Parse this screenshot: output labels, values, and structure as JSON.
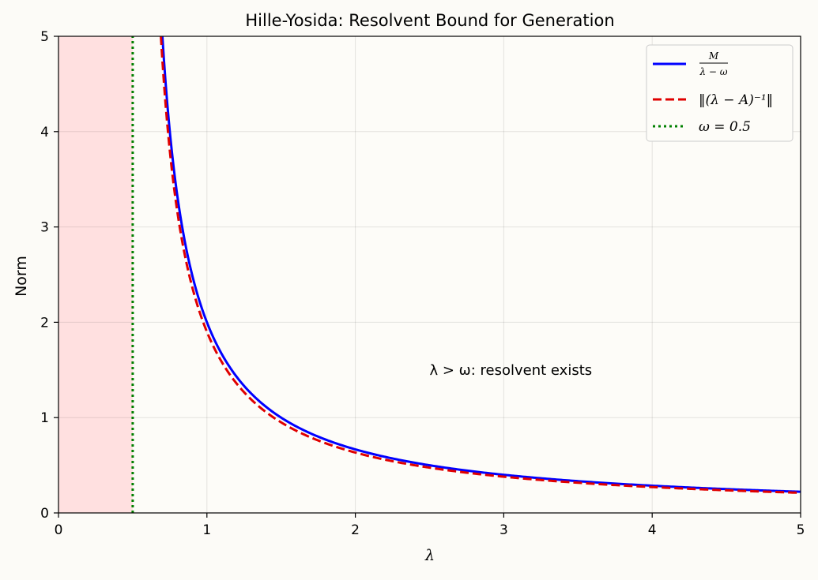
{
  "chart_data": {
    "type": "line",
    "title": "Hille-Yosida: Resolvent Bound for Generation",
    "xlabel": "λ",
    "ylabel": "Norm",
    "xlim": [
      0,
      5
    ],
    "ylim": [
      0,
      5
    ],
    "xticks": [
      0,
      1,
      2,
      3,
      4,
      5
    ],
    "yticks": [
      0,
      1,
      2,
      3,
      4,
      5
    ],
    "grid": true,
    "legend_position": "top-right",
    "omega": 0.5,
    "M": 1,
    "series": [
      {
        "name": "M/(λ − ω)",
        "color": "#0000ff",
        "style": "solid",
        "x": [
          0.7,
          0.75,
          0.8,
          0.9,
          1.0,
          1.25,
          1.5,
          2.0,
          2.5,
          3.0,
          3.5,
          4.0,
          4.5,
          5.0
        ],
        "y": [
          5.0,
          4.0,
          3.33,
          2.5,
          2.0,
          1.33,
          1.0,
          0.667,
          0.5,
          0.4,
          0.333,
          0.286,
          0.25,
          0.222
        ]
      },
      {
        "name": "‖(λ − A)⁻¹‖",
        "color": "#e00000",
        "style": "dashed",
        "x": [
          0.69,
          0.75,
          0.8,
          0.9,
          1.0,
          1.25,
          1.5,
          2.0,
          2.5,
          3.0,
          3.5,
          4.0,
          4.5,
          5.0
        ],
        "y": [
          5.0,
          3.8,
          3.17,
          2.38,
          1.9,
          1.27,
          0.95,
          0.633,
          0.475,
          0.38,
          0.317,
          0.271,
          0.238,
          0.211
        ]
      },
      {
        "name": "ω = 0.5",
        "color": "#008000",
        "style": "dotted",
        "x": [
          0.5,
          0.5
        ],
        "y": [
          0,
          5
        ]
      }
    ],
    "shaded_region": {
      "x": [
        0,
        0.5
      ],
      "color": "#ffe0e0"
    },
    "annotation": {
      "text": "λ > ω: resolvent exists",
      "x": 2.5,
      "y": 1.5
    }
  },
  "legend": {
    "blue_num": "M",
    "blue_den": "λ − ω",
    "red": "‖(λ − A)⁻¹‖",
    "green": "ω = 0.5"
  }
}
